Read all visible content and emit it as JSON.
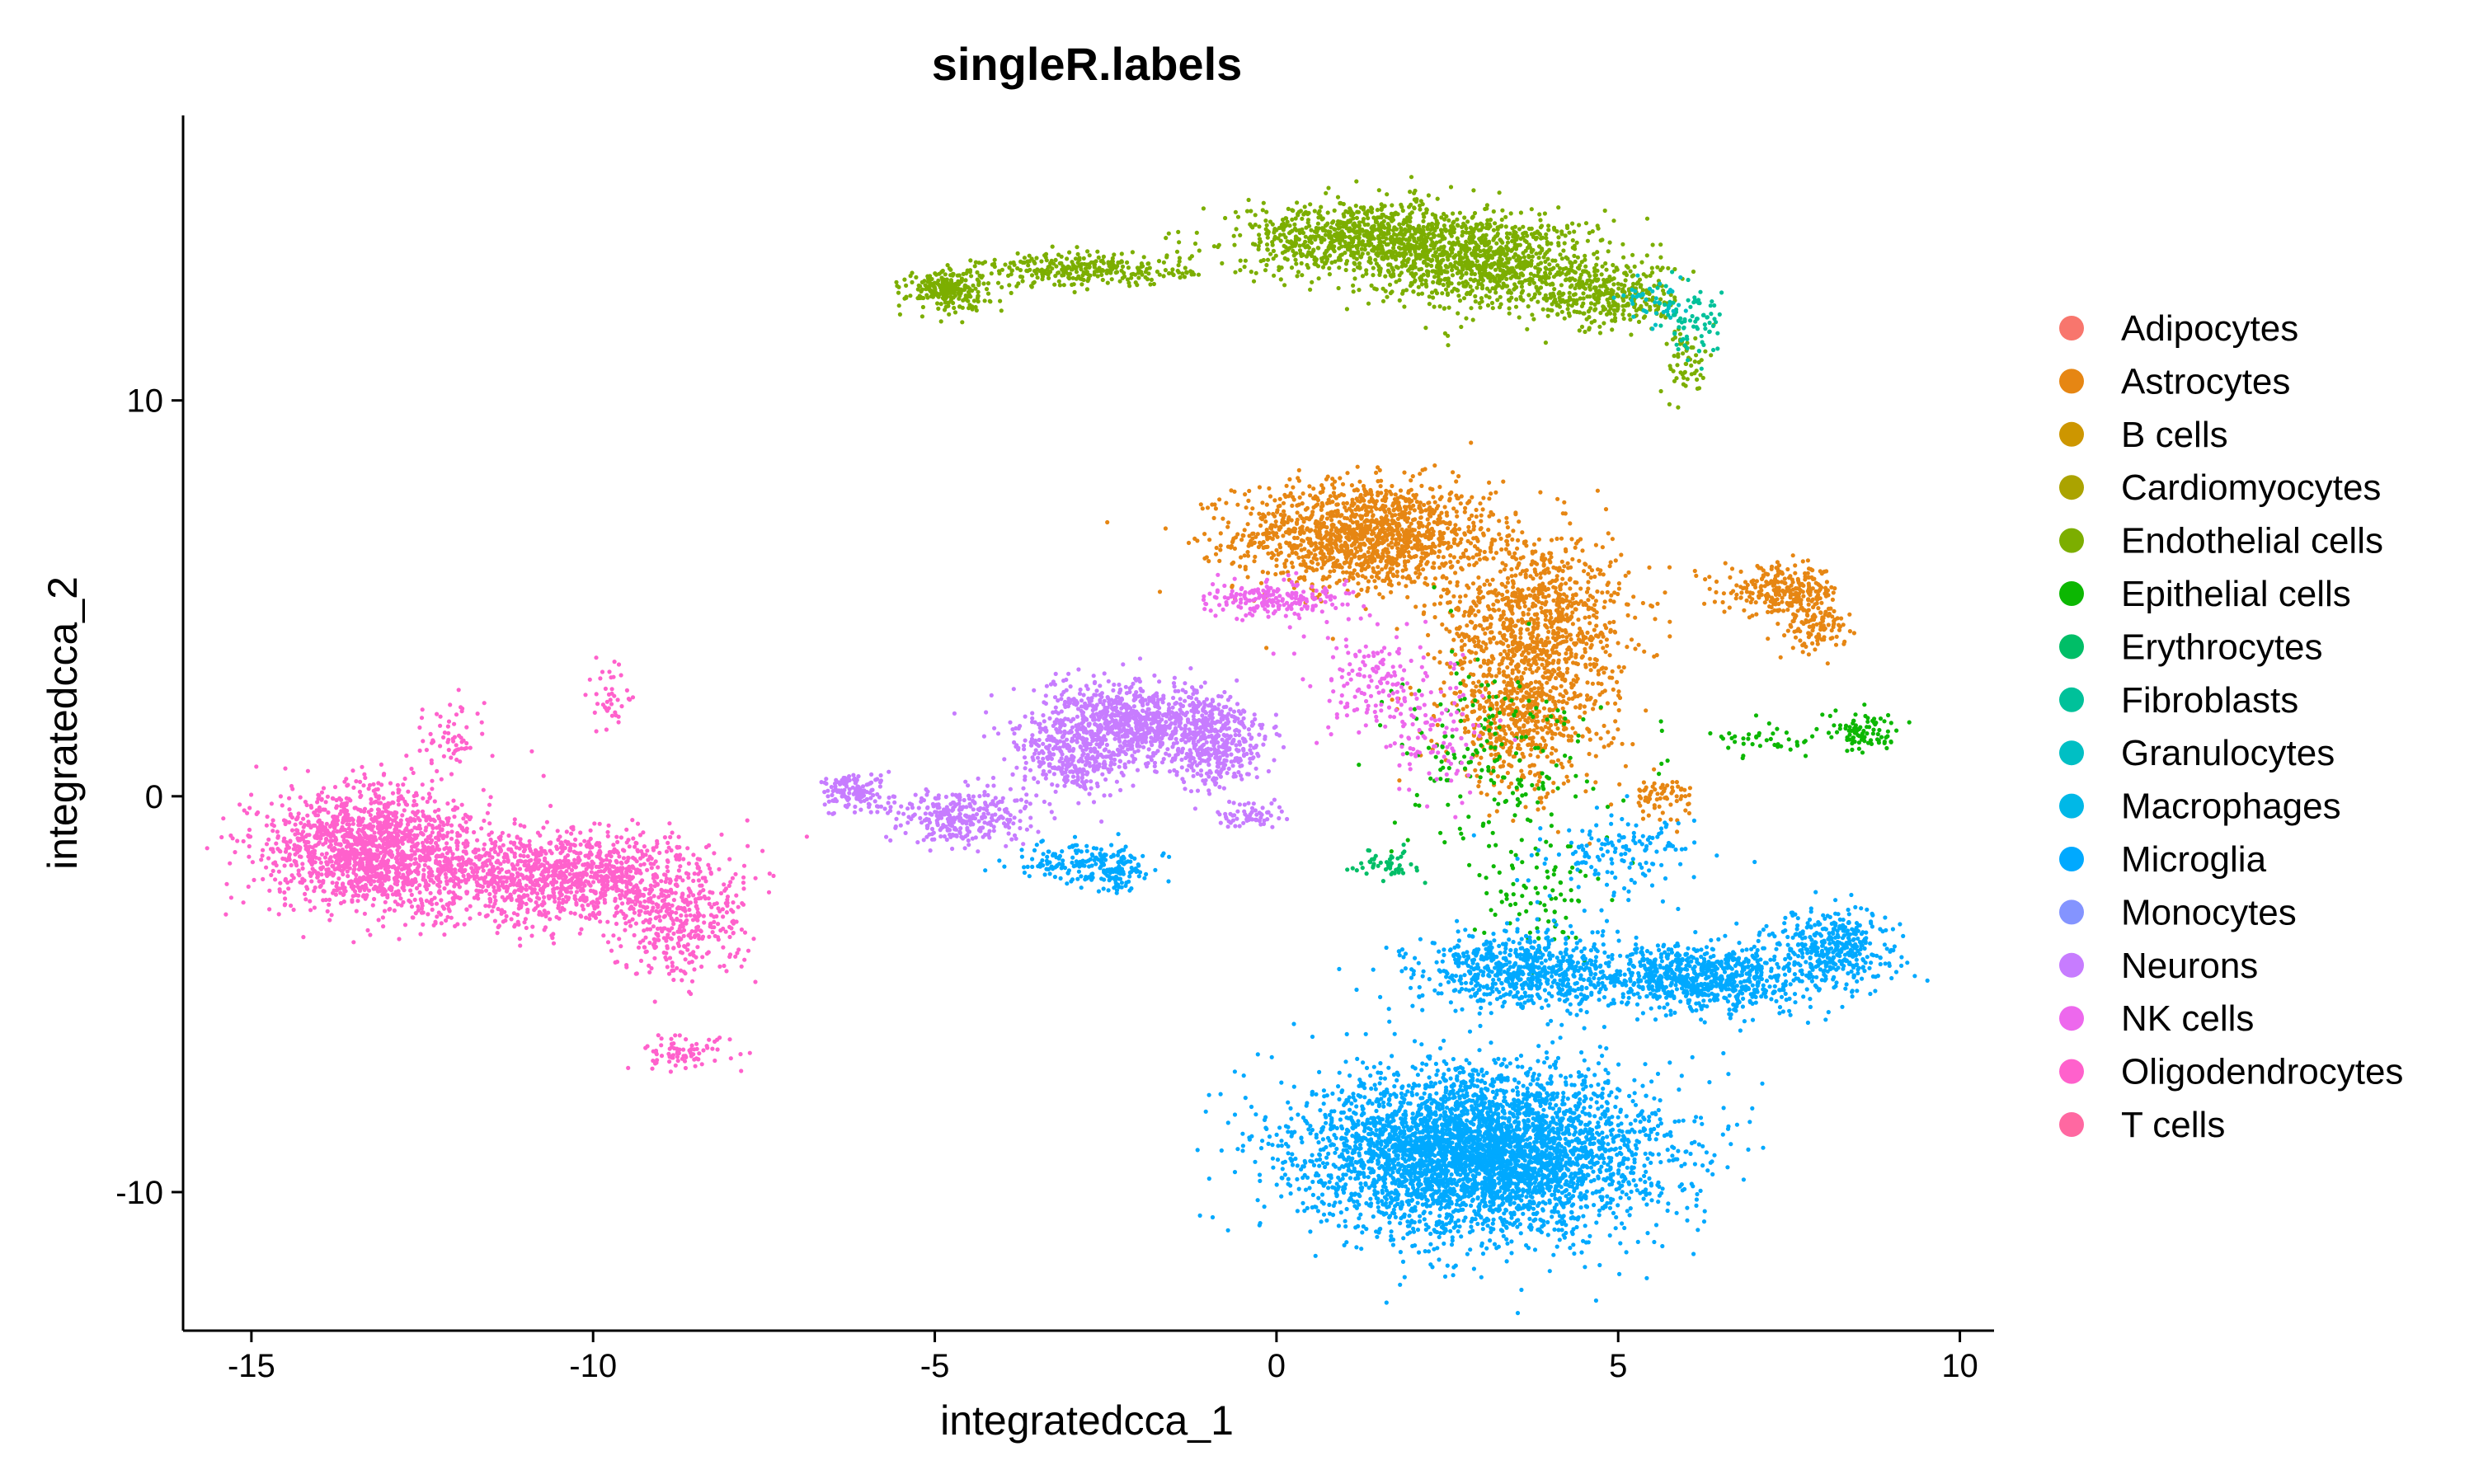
{
  "chart_data": {
    "type": "scatter",
    "title": "singleR.labels",
    "xlabel": "integratedcca_1",
    "ylabel": "integratedcca_2",
    "xlim": [
      -16,
      10.5
    ],
    "ylim": [
      -13.5,
      17.2
    ],
    "xticks": [
      -15,
      -10,
      -5,
      0,
      5,
      10
    ],
    "yticks": [
      -10,
      0,
      10
    ],
    "grid": false,
    "legend_position": "right",
    "series": [
      {
        "name": "Adipocytes",
        "color": "#F8766D",
        "clusters": []
      },
      {
        "name": "Astrocytes",
        "color": "#E68613",
        "clusters": [
          {
            "cx": 1.3,
            "cy": 6.6,
            "sx": 1.1,
            "sy": 0.8,
            "n": 1400
          },
          {
            "cx": 3.8,
            "cy": 4.5,
            "sx": 0.8,
            "sy": 1.3,
            "n": 900
          },
          {
            "cx": 3.6,
            "cy": 2.0,
            "sx": 0.7,
            "sy": 1.1,
            "n": 600
          },
          {
            "cx": 7.4,
            "cy": 5.2,
            "sx": 0.5,
            "sy": 0.35,
            "n": 260
          },
          {
            "cx": 7.9,
            "cy": 4.3,
            "sx": 0.25,
            "sy": 0.4,
            "n": 120
          },
          {
            "cx": 5.6,
            "cy": 0.0,
            "sx": 0.3,
            "sy": 0.3,
            "n": 70
          }
        ]
      },
      {
        "name": "B cells",
        "color": "#CD9600",
        "clusters": []
      },
      {
        "name": "Cardiomyocytes",
        "color": "#ABA300",
        "clusters": []
      },
      {
        "name": "Endothelial cells",
        "color": "#7CAE00",
        "clusters": [
          {
            "cx": -4.8,
            "cy": 12.8,
            "sx": 0.35,
            "sy": 0.3,
            "n": 240
          },
          {
            "cx": -2.8,
            "cy": 13.3,
            "sx": 0.9,
            "sy": 0.25,
            "n": 300
          },
          {
            "cx": 1.3,
            "cy": 14.1,
            "sx": 1.1,
            "sy": 0.55,
            "n": 900
          },
          {
            "cx": 3.1,
            "cy": 13.5,
            "sx": 1.0,
            "sy": 0.7,
            "n": 900
          },
          {
            "cx": 4.9,
            "cy": 12.6,
            "sx": 0.6,
            "sy": 0.5,
            "n": 300
          },
          {
            "cx": 6.0,
            "cy": 11.0,
            "sx": 0.2,
            "sy": 0.5,
            "n": 60
          }
        ]
      },
      {
        "name": "Epithelial cells",
        "color": "#0CB702",
        "clusters": [
          {
            "cx": 8.6,
            "cy": 1.6,
            "sx": 0.3,
            "sy": 0.3,
            "n": 90
          },
          {
            "cx": 7.2,
            "cy": 1.4,
            "sx": 0.5,
            "sy": 0.2,
            "n": 40
          },
          {
            "cx": 3.2,
            "cy": 1.0,
            "sx": 0.9,
            "sy": 1.5,
            "n": 200
          },
          {
            "cx": 3.8,
            "cy": -2.5,
            "sx": 0.5,
            "sy": 0.8,
            "n": 80
          }
        ]
      },
      {
        "name": "Erythrocytes",
        "color": "#00BE67",
        "clusters": [
          {
            "cx": 1.6,
            "cy": -1.7,
            "sx": 0.25,
            "sy": 0.2,
            "n": 50
          }
        ]
      },
      {
        "name": "Fibroblasts",
        "color": "#00C19A",
        "clusters": [
          {
            "cx": 6.1,
            "cy": 11.9,
            "sx": 0.3,
            "sy": 0.5,
            "n": 80
          }
        ]
      },
      {
        "name": "Granulocytes",
        "color": "#00BFC4",
        "clusters": [
          {
            "cx": 5.5,
            "cy": 12.4,
            "sx": 0.3,
            "sy": 0.3,
            "n": 40
          }
        ]
      },
      {
        "name": "Macrophages",
        "color": "#00B8E7",
        "clusters": []
      },
      {
        "name": "Microglia",
        "color": "#00A9FF",
        "clusters": [
          {
            "cx": 3.0,
            "cy": -9.0,
            "sx": 1.5,
            "sy": 1.2,
            "n": 4200
          },
          {
            "cx": 3.6,
            "cy": -4.4,
            "sx": 0.9,
            "sy": 0.55,
            "n": 700
          },
          {
            "cx": 6.2,
            "cy": -4.6,
            "sx": 0.9,
            "sy": 0.5,
            "n": 800
          },
          {
            "cx": 8.2,
            "cy": -3.9,
            "sx": 0.5,
            "sy": 0.6,
            "n": 400
          },
          {
            "cx": 5.0,
            "cy": -1.5,
            "sx": 0.7,
            "sy": 0.6,
            "n": 150
          },
          {
            "cx": -2.8,
            "cy": -1.7,
            "sx": 0.6,
            "sy": 0.35,
            "n": 180
          },
          {
            "cx": -2.3,
            "cy": -2.0,
            "sx": 0.2,
            "sy": 0.3,
            "n": 50
          }
        ]
      },
      {
        "name": "Monocytes",
        "color": "#8494FF",
        "clusters": []
      },
      {
        "name": "Neurons",
        "color": "#C77CFF",
        "clusters": [
          {
            "cx": -2.0,
            "cy": 1.9,
            "sx": 0.9,
            "sy": 0.55,
            "n": 900
          },
          {
            "cx": -0.9,
            "cy": 1.2,
            "sx": 0.4,
            "sy": 0.6,
            "n": 300
          },
          {
            "cx": -3.0,
            "cy": 0.9,
            "sx": 0.5,
            "sy": 0.5,
            "n": 300
          },
          {
            "cx": -4.6,
            "cy": -0.5,
            "sx": 0.6,
            "sy": 0.4,
            "n": 300
          },
          {
            "cx": -6.2,
            "cy": 0.1,
            "sx": 0.3,
            "sy": 0.3,
            "n": 150
          },
          {
            "cx": -0.3,
            "cy": -0.5,
            "sx": 0.3,
            "sy": 0.2,
            "n": 60
          }
        ]
      },
      {
        "name": "NK cells",
        "color": "#ED68ED",
        "clusters": [
          {
            "cx": 0.0,
            "cy": 5.0,
            "sx": 0.6,
            "sy": 0.25,
            "n": 200
          },
          {
            "cx": 1.5,
            "cy": 3.0,
            "sx": 0.6,
            "sy": 0.8,
            "n": 150
          },
          {
            "cx": 2.3,
            "cy": 1.5,
            "sx": 0.5,
            "sy": 0.8,
            "n": 100
          }
        ]
      },
      {
        "name": "Oligodendrocytes",
        "color": "#FF61CC",
        "clusters": [
          {
            "cx": -13.3,
            "cy": -1.3,
            "sx": 0.9,
            "sy": 0.9,
            "n": 1500
          },
          {
            "cx": -10.5,
            "cy": -2.1,
            "sx": 1.3,
            "sy": 0.7,
            "n": 1300
          },
          {
            "cx": -8.7,
            "cy": -3.4,
            "sx": 0.5,
            "sy": 0.8,
            "n": 300
          },
          {
            "cx": -8.7,
            "cy": -6.5,
            "sx": 0.5,
            "sy": 0.3,
            "n": 80
          },
          {
            "cx": -12.1,
            "cy": 1.5,
            "sx": 0.3,
            "sy": 0.6,
            "n": 60
          },
          {
            "cx": -9.7,
            "cy": 2.5,
            "sx": 0.2,
            "sy": 0.5,
            "n": 40
          }
        ]
      },
      {
        "name": "T cells",
        "color": "#FF68A1",
        "clusters": []
      }
    ]
  }
}
